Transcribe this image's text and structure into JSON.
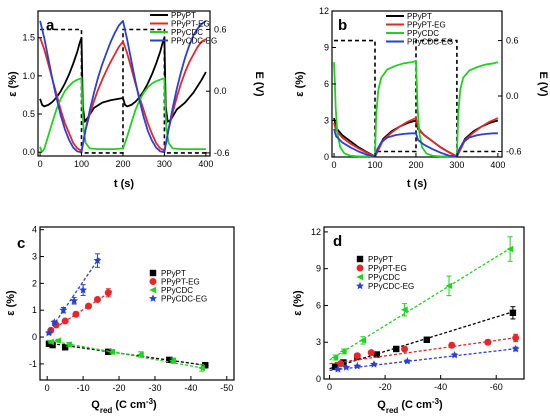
{
  "colors": {
    "black": "#000000",
    "red": "#e8262a",
    "green": "#22d022",
    "blue": "#2a3fd6",
    "axis": "#000000"
  },
  "chart_data": [
    {
      "panel": "a",
      "type": "line",
      "xlabel": "t (s)",
      "ylabel": "ε (%)",
      "y2label": "E (V)",
      "xlim": [
        -5,
        410
      ],
      "ylim": [
        -0.05,
        1.85
      ],
      "y2lim": [
        -0.63,
        0.78
      ],
      "xticks": [
        "0",
        "100",
        "200",
        "300",
        "400"
      ],
      "yticks": [
        "0.0",
        "0.5",
        "1.0",
        "1.5"
      ],
      "y2ticks": [
        "-0.6",
        "0.0",
        "0.6"
      ],
      "legend": [
        "PPyPT",
        "PPyPT-EG",
        "PPyCDC",
        "PPyCDC-EG"
      ],
      "series": [
        {
          "color": "#000000",
          "x": [
            0,
            5,
            10,
            20,
            30,
            40,
            50,
            60,
            70,
            80,
            90,
            95,
            100,
            103,
            108,
            115,
            130,
            150,
            170,
            190,
            200,
            205,
            210,
            220,
            230,
            240,
            250,
            260,
            270,
            280,
            290,
            295,
            300,
            303,
            308,
            315,
            330,
            350,
            370,
            390,
            400
          ],
          "y": [
            0.7,
            0.62,
            0.6,
            0.62,
            0.66,
            0.72,
            0.8,
            0.9,
            1.02,
            1.16,
            1.32,
            1.42,
            1.5,
            0.6,
            0.4,
            0.45,
            0.58,
            0.65,
            0.68,
            0.7,
            0.71,
            0.62,
            0.6,
            0.62,
            0.66,
            0.72,
            0.8,
            0.9,
            1.02,
            1.16,
            1.32,
            1.42,
            1.5,
            0.6,
            0.4,
            0.42,
            0.56,
            0.65,
            0.78,
            0.95,
            1.05
          ]
        },
        {
          "color": "#e8262a",
          "x": [
            0,
            10,
            20,
            30,
            40,
            50,
            60,
            70,
            80,
            90,
            100,
            110,
            120,
            130,
            140,
            150,
            160,
            170,
            180,
            190,
            200,
            210,
            220,
            230,
            240,
            250,
            260,
            270,
            280,
            290,
            300,
            310,
            320,
            330,
            340,
            350,
            360,
            370,
            380,
            390,
            400
          ],
          "y": [
            1.5,
            1.35,
            1.15,
            0.95,
            0.75,
            0.55,
            0.38,
            0.25,
            0.12,
            0.05,
            0.02,
            0.3,
            0.5,
            0.67,
            0.82,
            0.95,
            1.07,
            1.18,
            1.28,
            1.38,
            1.45,
            1.3,
            1.1,
            0.9,
            0.72,
            0.55,
            0.38,
            0.24,
            0.12,
            0.05,
            0.02,
            0.3,
            0.52,
            0.72,
            0.9,
            1.05,
            1.18,
            1.28,
            1.38,
            1.45,
            1.48
          ]
        },
        {
          "color": "#22d022",
          "x": [
            0,
            3,
            6,
            10,
            20,
            30,
            40,
            50,
            60,
            70,
            80,
            90,
            100,
            102,
            105,
            110,
            120,
            140,
            160,
            180,
            200,
            210,
            220,
            230,
            240,
            250,
            260,
            270,
            280,
            290,
            300,
            302,
            305,
            310,
            320,
            340,
            360,
            380,
            400
          ],
          "y": [
            0.07,
            0.02,
            0.01,
            0.04,
            0.22,
            0.4,
            0.57,
            0.7,
            0.8,
            0.87,
            0.92,
            0.95,
            0.97,
            0.6,
            0.3,
            0.12,
            0.05,
            0.04,
            0.04,
            0.04,
            0.05,
            0.2,
            0.38,
            0.55,
            0.68,
            0.78,
            0.85,
            0.9,
            0.93,
            0.95,
            0.97,
            0.6,
            0.3,
            0.12,
            0.05,
            0.04,
            0.04,
            0.04,
            0.04
          ]
        },
        {
          "color": "#2a3fd6",
          "x": [
            0,
            10,
            20,
            30,
            40,
            50,
            60,
            70,
            80,
            90,
            100,
            110,
            120,
            130,
            140,
            150,
            160,
            170,
            180,
            190,
            200,
            210,
            220,
            230,
            240,
            250,
            260,
            270,
            280,
            290,
            300,
            310,
            320,
            330,
            340,
            350,
            360,
            370,
            380,
            390,
            400
          ],
          "y": [
            1.72,
            1.5,
            1.22,
            0.95,
            0.7,
            0.48,
            0.3,
            0.16,
            0.06,
            0.01,
            0.0,
            0.3,
            0.55,
            0.78,
            0.98,
            1.15,
            1.3,
            1.44,
            1.56,
            1.66,
            1.72,
            1.48,
            1.2,
            0.93,
            0.68,
            0.46,
            0.28,
            0.15,
            0.06,
            0.01,
            0.0,
            0.3,
            0.58,
            0.83,
            1.05,
            1.24,
            1.4,
            1.53,
            1.62,
            1.68,
            1.72
          ]
        }
      ],
      "potential": {
        "color": "#000000",
        "x": [
          0,
          100,
          100,
          200,
          200,
          300,
          300,
          400
        ],
        "y": [
          0.6,
          0.6,
          -0.6,
          -0.6,
          0.6,
          0.6,
          -0.6,
          -0.6
        ]
      }
    },
    {
      "panel": "b",
      "type": "line",
      "xlabel": "t (s)",
      "ylabel": "ε (%)",
      "y2label": "E (V)",
      "xlim": [
        -5,
        410
      ],
      "ylim": [
        0,
        12
      ],
      "y2lim": [
        -0.66,
        0.92
      ],
      "xticks": [
        "0",
        "100",
        "200",
        "300",
        "400"
      ],
      "yticks": [
        "0",
        "3",
        "6",
        "9",
        "12"
      ],
      "y2ticks": [
        "-0.6",
        "0.0",
        "0.6"
      ],
      "legend": [
        "PPyPT",
        "PPyPT-EG",
        "PPyCDC",
        "PPyCDC-EG"
      ],
      "series": [
        {
          "color": "#000000",
          "x": [
            0,
            5,
            20,
            40,
            60,
            80,
            100,
            110,
            120,
            140,
            160,
            180,
            200,
            205,
            220,
            240,
            260,
            280,
            300,
            310,
            320,
            340,
            360,
            380,
            400
          ],
          "y": [
            3.2,
            2.4,
            1.8,
            1.3,
            0.8,
            0.4,
            0.05,
            0.8,
            1.5,
            2.1,
            2.5,
            2.8,
            3.0,
            2.3,
            1.8,
            1.3,
            0.8,
            0.4,
            0.05,
            0.8,
            1.5,
            2.1,
            2.5,
            2.8,
            3.0
          ]
        },
        {
          "color": "#e8262a",
          "x": [
            0,
            5,
            20,
            40,
            60,
            80,
            100,
            110,
            120,
            140,
            160,
            180,
            200,
            205,
            220,
            240,
            260,
            280,
            300,
            310,
            320,
            340,
            360,
            380,
            400
          ],
          "y": [
            2.8,
            2.2,
            1.6,
            1.1,
            0.7,
            0.35,
            0.03,
            0.7,
            1.4,
            2.0,
            2.5,
            2.9,
            3.2,
            2.4,
            1.8,
            1.3,
            0.8,
            0.4,
            0.03,
            0.7,
            1.4,
            2.0,
            2.5,
            2.9,
            3.2
          ]
        },
        {
          "color": "#22d022",
          "x": [
            0,
            2,
            4,
            8,
            15,
            25,
            40,
            60,
            80,
            95,
            100,
            103,
            108,
            115,
            130,
            150,
            170,
            190,
            200,
            202,
            204,
            208,
            215,
            225,
            240,
            260,
            280,
            295,
            300,
            303,
            308,
            315,
            330,
            350,
            370,
            390,
            400
          ],
          "y": [
            7.8,
            6.0,
            4.0,
            2.0,
            0.8,
            0.3,
            0.1,
            0.05,
            0.05,
            0.05,
            0.05,
            3.5,
            5.5,
            6.5,
            7.2,
            7.5,
            7.7,
            7.8,
            7.9,
            6.0,
            4.0,
            2.0,
            0.8,
            0.3,
            0.1,
            0.05,
            0.05,
            0.05,
            0.05,
            3.5,
            5.5,
            6.5,
            7.1,
            7.4,
            7.6,
            7.7,
            7.8
          ]
        },
        {
          "color": "#2a3fd6",
          "x": [
            0,
            5,
            20,
            40,
            60,
            80,
            100,
            105,
            115,
            130,
            150,
            170,
            190,
            200,
            205,
            220,
            240,
            260,
            280,
            300,
            305,
            315,
            330,
            350,
            370,
            390,
            400
          ],
          "y": [
            2.3,
            1.7,
            1.2,
            0.8,
            0.45,
            0.2,
            0.02,
            0.6,
            1.2,
            1.6,
            1.8,
            1.9,
            1.95,
            1.95,
            1.4,
            1.0,
            0.65,
            0.35,
            0.12,
            0.02,
            0.6,
            1.2,
            1.6,
            1.8,
            1.9,
            1.95,
            1.95
          ]
        }
      ],
      "potential": {
        "color": "#000000",
        "x": [
          0,
          100,
          100,
          200,
          200,
          300,
          300,
          400
        ],
        "y": [
          0.6,
          0.6,
          -0.6,
          -0.6,
          0.6,
          0.6,
          -0.6,
          -0.6
        ]
      }
    },
    {
      "panel": "c",
      "type": "scatter",
      "xlabel": "Q",
      "xlabel_sub": "red",
      "xlabel_unit": " (C cm",
      "xlabel_sup": "-3",
      "xlabel_end": ")",
      "ylabel": "ε (%)",
      "xlim": [
        2,
        -52
      ],
      "ylim": [
        -1.6,
        4.1
      ],
      "xticks": [
        "0",
        "-10",
        "-20",
        "-30",
        "-40",
        "-50"
      ],
      "yticks": [
        "-1",
        "0",
        "1",
        "2",
        "3",
        "4"
      ],
      "legend": [
        "PPyPT",
        "PPyPT-EG",
        "PPyCDC",
        "PPyCDC-EG"
      ],
      "series": [
        {
          "color": "#000000",
          "marker": "square",
          "x": [
            -0.5,
            -1.5,
            -5,
            -17,
            -34,
            -44
          ],
          "y": [
            -0.25,
            -0.3,
            -0.38,
            -0.55,
            -0.85,
            -1.05
          ],
          "err": [
            0.05,
            0.05,
            0.05,
            0.05,
            0.05,
            0.08
          ],
          "fit": [
            [
              0,
              -0.22
            ],
            [
              -45,
              -1.07
            ]
          ]
        },
        {
          "color": "#e8262a",
          "marker": "circle",
          "x": [
            -1,
            -2.5,
            -5,
            -8,
            -11.5,
            -14,
            -17
          ],
          "y": [
            0.25,
            0.45,
            0.6,
            0.85,
            1.15,
            1.4,
            1.65
          ],
          "err": [
            0.05,
            0.05,
            0.05,
            0.08,
            0.08,
            0.08,
            0.15
          ],
          "fit": [
            [
              0,
              0.15
            ],
            [
              -18,
              1.72
            ]
          ]
        },
        {
          "color": "#22d022",
          "marker": "triangle-left",
          "x": [
            -1,
            -3,
            -6,
            -18,
            -26,
            -35,
            -43
          ],
          "y": [
            -0.18,
            -0.13,
            -0.28,
            -0.55,
            -0.65,
            -0.88,
            -1.15
          ],
          "err": [
            0.05,
            0.05,
            0.08,
            0.08,
            0.1,
            0.1,
            0.12
          ],
          "fit": [
            [
              0,
              -0.12
            ],
            [
              -44,
              -1.17
            ]
          ]
        },
        {
          "color": "#2a3fd6",
          "marker": "star",
          "x": [
            -0.5,
            -2,
            -4.5,
            -7.5,
            -10,
            -14
          ],
          "y": [
            0.15,
            0.55,
            1.0,
            1.35,
            1.75,
            2.85
          ],
          "err": [
            0.05,
            0.05,
            0.1,
            0.12,
            0.2,
            0.25
          ],
          "fit": [
            [
              0,
              0.1
            ],
            [
              -14.5,
              2.95
            ]
          ]
        }
      ]
    },
    {
      "panel": "d",
      "type": "scatter",
      "xlabel": "Q",
      "xlabel_sub": "red",
      "xlabel_unit": " (C cm",
      "xlabel_sup": "-3",
      "xlabel_end": ")",
      "ylabel": "ε (%)",
      "xlim": [
        2,
        -70
      ],
      "ylim": [
        0,
        12.4
      ],
      "xticks": [
        "0",
        "-20",
        "-40",
        "-60"
      ],
      "yticks": [
        "0",
        "3",
        "6",
        "9",
        "12"
      ],
      "legend": [
        "PPyPT",
        "PPyPT-EG",
        "PPyCDC",
        "PPyCDC-EG"
      ],
      "series": [
        {
          "color": "#000000",
          "marker": "square",
          "x": [
            -2,
            -5,
            -10,
            -17,
            -24,
            -35,
            -66
          ],
          "y": [
            1.0,
            1.35,
            1.8,
            2.0,
            2.45,
            3.2,
            5.4
          ],
          "err": [
            0.1,
            0.1,
            0.1,
            0.1,
            0.1,
            0.2,
            0.5
          ],
          "fit": [
            [
              0,
              0.85
            ],
            [
              -67,
              5.55
            ]
          ]
        },
        {
          "color": "#e8262a",
          "marker": "circle",
          "x": [
            -4,
            -10,
            -15,
            -27,
            -44,
            -57,
            -67
          ],
          "y": [
            1.25,
            1.9,
            2.15,
            2.45,
            2.75,
            3.0,
            3.35
          ],
          "err": [
            0.1,
            0.1,
            0.1,
            0.1,
            0.2,
            0.2,
            0.3
          ],
          "fit": [
            [
              0,
              1.25
            ],
            [
              -68,
              3.4
            ]
          ]
        },
        {
          "color": "#22d022",
          "marker": "triangle-left",
          "x": [
            -2,
            -5,
            -12,
            -27,
            -43,
            -65
          ],
          "y": [
            1.75,
            2.25,
            3.15,
            5.65,
            7.6,
            10.6
          ],
          "err": [
            0.2,
            0.2,
            0.3,
            0.5,
            0.8,
            1.0
          ],
          "fit": [
            [
              0,
              1.55
            ],
            [
              -66,
              10.8
            ]
          ]
        },
        {
          "color": "#2a3fd6",
          "marker": "star",
          "x": [
            -3,
            -6,
            -10,
            -16,
            -28,
            -45,
            -67
          ],
          "y": [
            0.8,
            0.95,
            1.05,
            1.2,
            1.45,
            1.95,
            2.45
          ],
          "err": [
            0.05,
            0.05,
            0.05,
            0.05,
            0.1,
            0.1,
            0.15
          ],
          "fit": [
            [
              0,
              0.7
            ],
            [
              -68,
              2.5
            ]
          ]
        }
      ]
    }
  ]
}
